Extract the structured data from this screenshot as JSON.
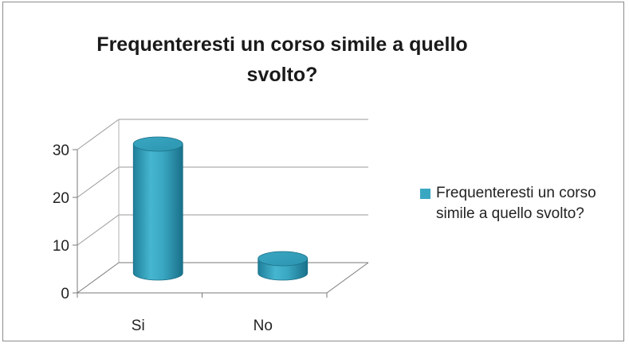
{
  "chart_data": {
    "type": "bar",
    "title": "Frequenteresti un corso simile a quello svolto?",
    "categories": [
      "Si",
      "No"
    ],
    "series": [
      {
        "name": "Frequenteresti un corso simile a quello svolto?",
        "values": [
          27,
          3
        ]
      }
    ],
    "ylim": [
      0,
      30
    ],
    "yticks": [
      0,
      10,
      20,
      30
    ],
    "grid": true,
    "legend_position": "right",
    "bar_color": "#3aa7c2"
  }
}
